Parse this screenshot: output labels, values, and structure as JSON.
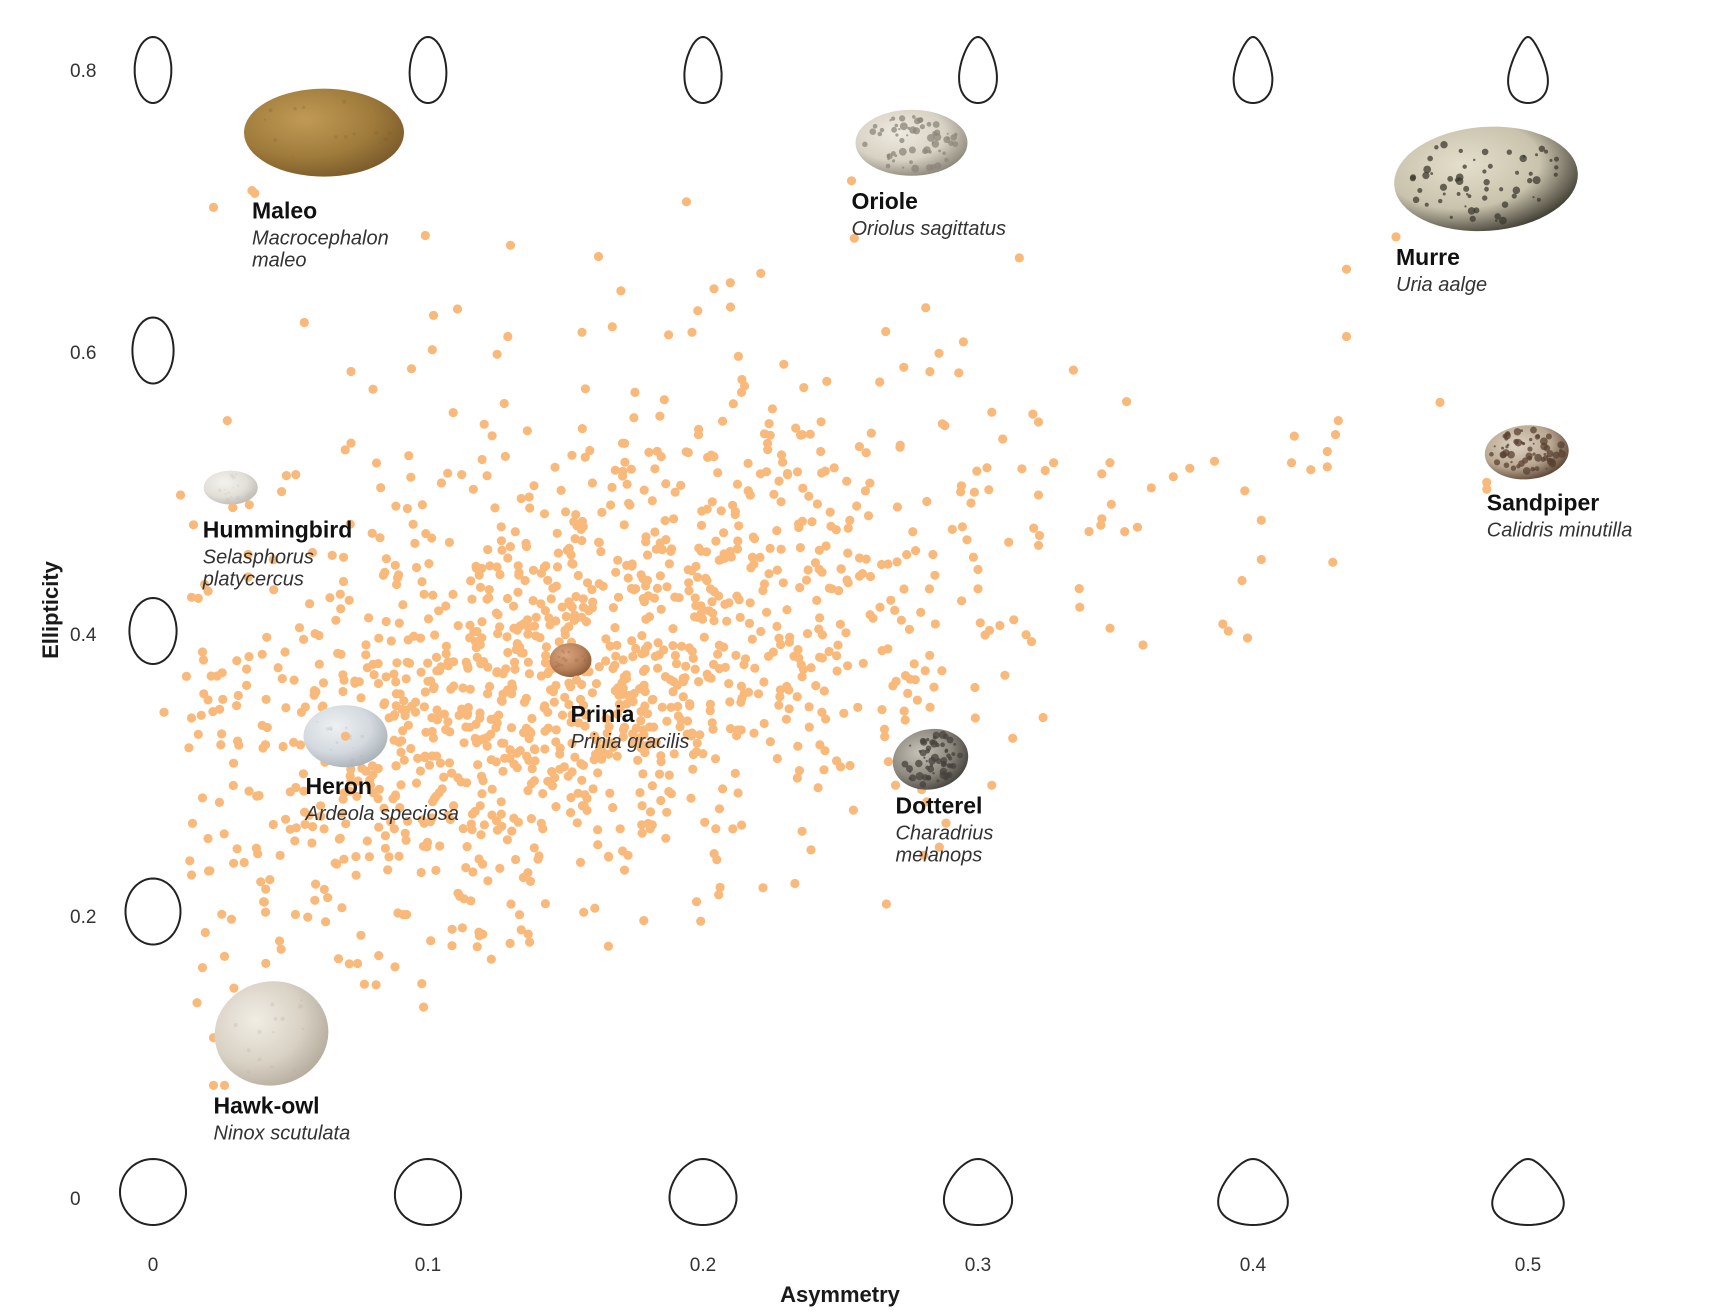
{
  "chart_data": {
    "type": "scatter",
    "title": "",
    "xlabel": "Asymmetry",
    "ylabel": "Ellipticity",
    "xlim": [
      0,
      0.5
    ],
    "ylim": [
      0,
      0.8
    ],
    "x_ticks": [
      "0",
      "0.1",
      "0.2",
      "0.3",
      "0.4",
      "0.5"
    ],
    "y_ticks": [
      "0",
      "0.2",
      "0.4",
      "0.6",
      "0.8"
    ],
    "grid": false,
    "point_color": "#f9b97a",
    "point_count": 1400,
    "points": [
      [
        0.022,
        0.702
      ],
      [
        0.037,
        0.712
      ],
      [
        0.099,
        0.682
      ],
      [
        0.194,
        0.706
      ],
      [
        0.13,
        0.675
      ],
      [
        0.162,
        0.667
      ],
      [
        0.204,
        0.644
      ],
      [
        0.221,
        0.655
      ],
      [
        0.21,
        0.631
      ],
      [
        0.255,
        0.68
      ],
      [
        0.315,
        0.666
      ],
      [
        0.055,
        0.62
      ],
      [
        0.102,
        0.625
      ],
      [
        0.129,
        0.61
      ],
      [
        0.072,
        0.585
      ],
      [
        0.094,
        0.587
      ],
      [
        0.167,
        0.617
      ],
      [
        0.156,
        0.613
      ],
      [
        0.196,
        0.613
      ],
      [
        0.245,
        0.578
      ],
      [
        0.273,
        0.588
      ],
      [
        0.293,
        0.584
      ],
      [
        0.027,
        0.55
      ],
      [
        0.072,
        0.534
      ],
      [
        0.093,
        0.525
      ],
      [
        0.035,
        0.49
      ],
      [
        0.01,
        0.497
      ],
      [
        0.058,
        0.456
      ],
      [
        0.014,
        0.424
      ],
      [
        0.018,
        0.385
      ],
      [
        0.014,
        0.338
      ],
      [
        0.004,
        0.342
      ],
      [
        0.031,
        0.354
      ],
      [
        0.018,
        0.281
      ],
      [
        0.014,
        0.226
      ],
      [
        0.019,
        0.185
      ],
      [
        0.025,
        0.198
      ],
      [
        0.018,
        0.16
      ],
      [
        0.016,
        0.135
      ],
      [
        0.022,
        0.11
      ],
      [
        0.026,
        0.076
      ],
      [
        0.041,
        0.163
      ],
      [
        0.046,
        0.179
      ],
      [
        0.123,
        0.166
      ],
      [
        0.244,
        0.301
      ],
      [
        0.305,
        0.29
      ],
      [
        0.266,
        0.33
      ],
      [
        0.284,
        0.36
      ],
      [
        0.299,
        0.338
      ],
      [
        0.36,
        0.39
      ],
      [
        0.348,
        0.402
      ],
      [
        0.337,
        0.417
      ],
      [
        0.313,
        0.408
      ],
      [
        0.3,
        0.43
      ],
      [
        0.296,
        0.465
      ],
      [
        0.322,
        0.461
      ],
      [
        0.345,
        0.48
      ],
      [
        0.358,
        0.474
      ],
      [
        0.363,
        0.502
      ],
      [
        0.322,
        0.497
      ],
      [
        0.403,
        0.479
      ],
      [
        0.396,
        0.436
      ],
      [
        0.398,
        0.395
      ],
      [
        0.391,
        0.4
      ],
      [
        0.389,
        0.405
      ],
      [
        0.397,
        0.5
      ],
      [
        0.414,
        0.52
      ],
      [
        0.421,
        0.515
      ],
      [
        0.427,
        0.528
      ],
      [
        0.43,
        0.54
      ],
      [
        0.431,
        0.55
      ],
      [
        0.427,
        0.517
      ],
      [
        0.429,
        0.449
      ],
      [
        0.403,
        0.451
      ],
      [
        0.415,
        0.539
      ],
      [
        0.434,
        0.658
      ],
      [
        0.434,
        0.61
      ],
      [
        0.468,
        0.563
      ],
      [
        0.485,
        0.501
      ],
      [
        0.305,
        0.556
      ],
      [
        0.322,
        0.549
      ],
      [
        0.345,
        0.512
      ],
      [
        0.371,
        0.51
      ],
      [
        0.386,
        0.521
      ],
      [
        0.377,
        0.516
      ]
    ],
    "highlights": [
      {
        "name": "Maleo",
        "species": "Macrocephalon maleo",
        "x": 0.036,
        "y": 0.714,
        "label_side": "right",
        "egg_colors": [
          "#7a5a2a",
          "#c09a55",
          "#a07c3c"
        ]
      },
      {
        "name": "Oriole",
        "species": "Oriolus sagittatus",
        "x": 0.254,
        "y": 0.721,
        "label_side": "right",
        "egg_colors": [
          "#8a8578",
          "#efeae0",
          "#d8d2c4"
        ]
      },
      {
        "name": "Murre",
        "species": "Uria aalge",
        "x": 0.452,
        "y": 0.681,
        "label_side": "right",
        "egg_colors": [
          "#3d3a30",
          "#e4dfcc",
          "#c9c3ad"
        ]
      },
      {
        "name": "Sandpiper",
        "species": "Calidris minutilla",
        "x": 0.485,
        "y": 0.506,
        "label_side": "right",
        "egg_colors": [
          "#5a4232",
          "#ddd2c2",
          "#b9a791"
        ]
      },
      {
        "name": "Hummingbird",
        "species": "Selasphorus platycercus",
        "x": 0.029,
        "y": 0.488,
        "label_side": "right",
        "egg_colors": [
          "#bdbab3",
          "#f4f2ed",
          "#e2dfd8"
        ]
      },
      {
        "name": "Prinia",
        "species": "Prinia gracilis",
        "x": 0.154,
        "y": 0.365,
        "label_side": "right",
        "egg_colors": [
          "#8b5a38",
          "#d9a57e",
          "#b9825c"
        ]
      },
      {
        "name": "Heron",
        "species": "Ardeola speciosa",
        "x": 0.07,
        "y": 0.325,
        "label_side": "right",
        "egg_colors": [
          "#a8b0b7",
          "#eef1f3",
          "#d3d9de"
        ]
      },
      {
        "name": "Dotterel",
        "species": "Charadrius melanops",
        "x": 0.27,
        "y": 0.29,
        "label_side": "right",
        "egg_colors": [
          "#45423c",
          "#c8c3b8",
          "#8c877d"
        ]
      },
      {
        "name": "Hawk-owl",
        "species": "Ninox scutulata",
        "x": 0.022,
        "y": 0.076,
        "label_side": "right",
        "egg_colors": [
          "#b4ab9c",
          "#f1ede4",
          "#d8d1c4"
        ]
      }
    ]
  }
}
